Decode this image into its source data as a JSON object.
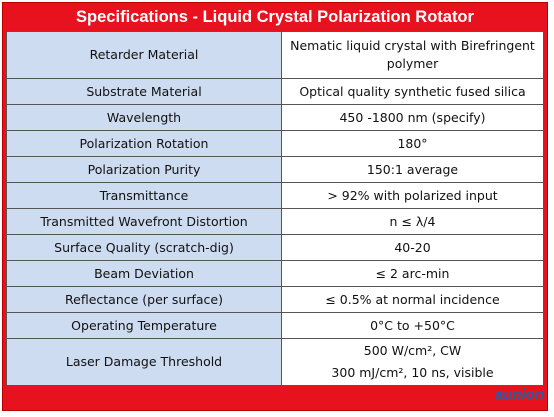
{
  "header": {
    "title": "Specifications - Liquid Crystal Polarization Rotator"
  },
  "table": {
    "rows": [
      [
        "Retarder Material",
        "Nematic liquid crystal with Birefringent polymer"
      ],
      [
        "Substrate Material",
        "Optical quality synthetic fused silica"
      ],
      [
        "Wavelength",
        "450 -1800 nm (specify)"
      ],
      [
        "Polarization Rotation",
        "180°"
      ],
      [
        "Polarization Purity",
        "150:1 average"
      ],
      [
        "Transmittance",
        "> 92% with polarized input"
      ],
      [
        "Transmitted Wavefront Distortion",
        "n ≤ λ/4"
      ],
      [
        "Surface Quality (scratch-dig)",
        "40-20"
      ],
      [
        "Beam Deviation",
        "≤ 2 arc-min"
      ],
      [
        "Reflectance (per surface)",
        "≤ 0.5% at normal incidence"
      ],
      [
        "Operating Temperature",
        "0°C to +50°C"
      ],
      [
        "Laser Damage Threshold",
        [
          "500 W/cm², CW",
          "300 mJ/cm², 10 ns, visible"
        ]
      ]
    ]
  },
  "watermark": {
    "brand": "aunion"
  }
}
